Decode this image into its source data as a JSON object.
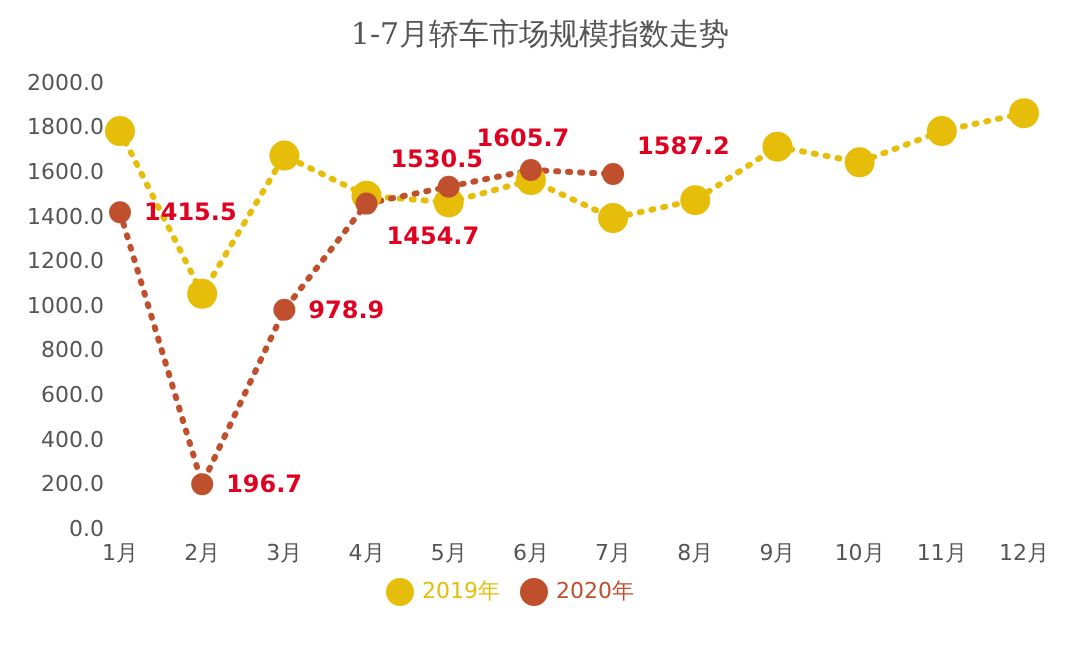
{
  "chart_data": {
    "type": "line",
    "title": "1-7月轿车市场规模指数走势",
    "categories": [
      "1月",
      "2月",
      "3月",
      "4月",
      "5月",
      "6月",
      "7月",
      "8月",
      "9月",
      "10月",
      "11月",
      "12月"
    ],
    "series": [
      {
        "name": "2019年",
        "color": "#e6be0a",
        "values": [
          1780,
          1050,
          1670,
          1490,
          1460,
          1560,
          1390,
          1470,
          1710,
          1640,
          1780,
          1860
        ]
      },
      {
        "name": "2020年",
        "color": "#c0502d",
        "values": [
          1415.5,
          196.7,
          978.9,
          1454.7,
          1530.5,
          1605.7,
          1587.2,
          null,
          null,
          null,
          null,
          null
        ],
        "data_labels": true
      }
    ],
    "ylim": [
      0,
      2000
    ],
    "yticks": [
      {
        "value": 0,
        "label": "0.0"
      },
      {
        "value": 200,
        "label": "200.0"
      },
      {
        "value": 400,
        "label": "400.0"
      },
      {
        "value": 600,
        "label": "600.0"
      },
      {
        "value": 800,
        "label": "800.0"
      },
      {
        "value": 1000,
        "label": "1000.0"
      },
      {
        "value": 1200,
        "label": "1200.0"
      },
      {
        "value": 1400,
        "label": "1400.0"
      },
      {
        "value": 1600,
        "label": "1600.0"
      },
      {
        "value": 1800,
        "label": "1800.0"
      },
      {
        "value": 2000,
        "label": "2000.0"
      }
    ],
    "grid": false,
    "legend": "bottom",
    "marker": "circle",
    "line_style": "dotted"
  }
}
